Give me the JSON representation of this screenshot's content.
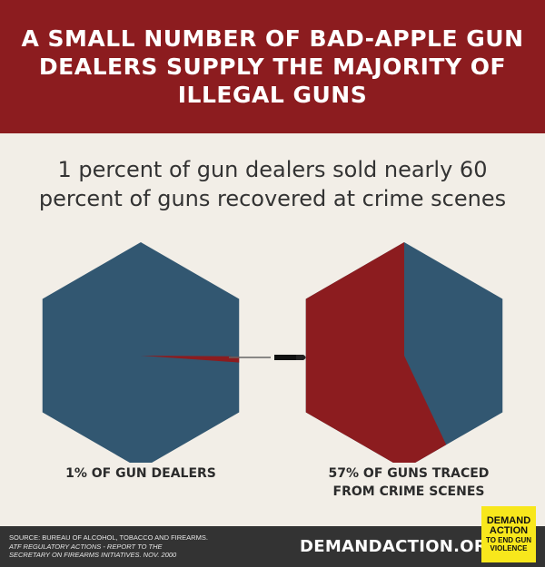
{
  "header": {
    "title": "A SMALL NUMBER OF BAD-APPLE GUN DEALERS SUPPLY THE MAJORITY OF ILLEGAL GUNS"
  },
  "subtitle": "1 percent of gun dealers sold nearly 60 percent of guns recovered at crime scenes",
  "colors": {
    "red": "#8c1c1f",
    "blue": "#325771",
    "background": "#f2eee7"
  },
  "chart_data": {
    "type": "pie",
    "charts": [
      {
        "slices": [
          {
            "label": "1% OF GUN DEALERS",
            "value": 1,
            "highlight": true
          },
          {
            "value": 99
          }
        ]
      },
      {
        "slices": [
          {
            "label": "57% OF GUNS TRACED FROM CRIME SCENES",
            "value": 57,
            "highlight": true
          },
          {
            "value": 43
          }
        ]
      }
    ]
  },
  "labels": {
    "left": "1% OF GUN DEALERS",
    "right_line1": "57% OF GUNS TRACED",
    "right_line2": "FROM CRIME SCENES"
  },
  "icons": {
    "bullet": "bullet-icon"
  },
  "footer": {
    "source_line1": "SOURCE: BUREAU OF ALCOHOL, TOBACCO AND FIREARMS.",
    "source_line2": "ATF REGULATORY ACTIONS - REPORT TO THE",
    "source_line3": "SECRETARY ON FIREARMS INITIATIVES. NOV. 2000",
    "site": "DEMANDACTION.ORG",
    "logo_line1": "DEMAND",
    "logo_line2": "ACTION",
    "logo_line3": "TO END GUN",
    "logo_line4": "VIOLENCE"
  }
}
